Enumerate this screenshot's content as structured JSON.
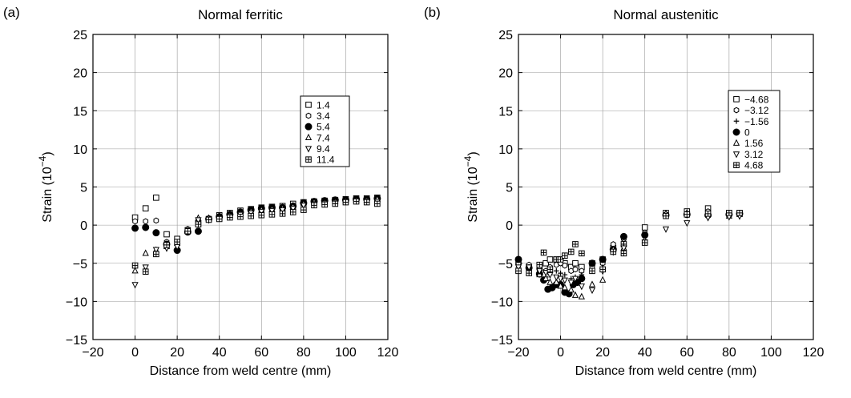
{
  "chart_data": [
    {
      "type": "scatter",
      "panel_label": "(a)",
      "title": "Normal ferritic",
      "xlabel": "Distance from weld centre (mm)",
      "ylabel": "Strain (10",
      "ylabel_exp": "−4",
      "ylabel_close": ")",
      "xlim": [
        -20,
        120
      ],
      "ylim": [
        -15,
        25
      ],
      "xticks": [
        "−20",
        "0",
        "20",
        "40",
        "60",
        "80",
        "100",
        "120"
      ],
      "yticks": [
        "25",
        "20",
        "15",
        "10",
        "5",
        "0",
        "−5",
        "−10",
        "−15"
      ],
      "grid": true,
      "legend_position": "upper-right",
      "series": [
        {
          "name": "1.4",
          "marker": "square",
          "x": [
            0,
            5,
            10,
            15,
            20,
            25,
            30,
            35,
            40,
            45,
            50,
            55,
            60,
            65,
            70,
            75,
            80,
            85,
            90,
            95,
            100,
            105,
            110,
            115
          ],
          "y": [
            1.0,
            2.2,
            3.6,
            -1.2,
            -1.8,
            -0.7,
            0.2,
            0.8,
            1.3,
            1.6,
            1.9,
            2.1,
            2.3,
            2.4,
            2.5,
            2.8,
            3.0,
            3.1,
            3.2,
            3.3,
            3.4,
            3.5,
            3.5,
            3.6
          ]
        },
        {
          "name": "3.4",
          "marker": "hexagon",
          "x": [
            0,
            5,
            10,
            15,
            20,
            25,
            30,
            35,
            40,
            45,
            50,
            55,
            60,
            65,
            70,
            75,
            80,
            85,
            90,
            95,
            100,
            105,
            110,
            115
          ],
          "y": [
            0.5,
            0.5,
            0.6,
            -2.2,
            -2.5,
            -0.5,
            0.4,
            0.9,
            1.2,
            1.5,
            1.8,
            2.0,
            2.2,
            2.3,
            2.4,
            2.6,
            2.9,
            3.0,
            3.1,
            3.2,
            3.3,
            3.4,
            3.4,
            3.5
          ]
        },
        {
          "name": "5.4",
          "marker": "filled-circle",
          "x": [
            0,
            5,
            10,
            15,
            20,
            25,
            30,
            35,
            40,
            45,
            50,
            55,
            60,
            65,
            70,
            75,
            80,
            85,
            90,
            95,
            100,
            105,
            110,
            115
          ],
          "y": [
            -0.4,
            -0.3,
            -1.0,
            -2.5,
            -3.3,
            -0.9,
            -0.8,
            0.8,
            1.1,
            1.4,
            1.7,
            2.0,
            2.2,
            2.3,
            2.3,
            2.5,
            2.9,
            3.1,
            3.2,
            3.3,
            3.3,
            3.4,
            3.4,
            3.5
          ]
        },
        {
          "name": "7.4",
          "marker": "triangle-up",
          "x": [
            0,
            5,
            10,
            15,
            20,
            25,
            30,
            35,
            40,
            45,
            50,
            55,
            60,
            65,
            70,
            75,
            80,
            85,
            90,
            95,
            100,
            105,
            110,
            115
          ],
          "y": [
            -6.0,
            -3.7,
            -3.3,
            -2.8,
            -2.4,
            -0.8,
            0.9,
            0.9,
            1.0,
            1.3,
            1.5,
            1.8,
            2.0,
            2.1,
            2.2,
            2.4,
            2.8,
            3.0,
            3.0,
            3.1,
            3.2,
            3.3,
            3.3,
            3.4
          ]
        },
        {
          "name": "9.4",
          "marker": "triangle-down",
          "x": [
            0,
            5,
            10,
            15,
            20,
            25,
            30,
            35,
            40,
            45,
            50,
            55,
            60,
            65,
            70,
            75,
            80,
            85,
            90,
            95,
            100,
            105,
            110,
            115
          ],
          "y": [
            -7.8,
            -5.5,
            -3.2,
            -3.0,
            -2.8,
            -0.6,
            0.7,
            0.7,
            0.9,
            1.2,
            1.4,
            1.6,
            1.8,
            1.9,
            2.0,
            2.2,
            2.6,
            2.8,
            2.9,
            3.0,
            3.1,
            3.2,
            3.2,
            3.1
          ]
        },
        {
          "name": "11.4",
          "marker": "grid-square",
          "x": [
            0,
            5,
            10,
            15,
            20,
            25,
            30,
            35,
            40,
            45,
            50,
            55,
            60,
            65,
            70,
            75,
            80,
            85,
            90,
            95,
            100,
            105,
            110,
            115
          ],
          "y": [
            -5.3,
            -6.1,
            -3.8,
            -2.6,
            -2.2,
            -0.8,
            0.1,
            0.7,
            0.8,
            1.0,
            1.1,
            1.2,
            1.3,
            1.4,
            1.5,
            1.7,
            2.0,
            2.6,
            2.7,
            2.8,
            3.0,
            3.1,
            3.0,
            2.8
          ]
        }
      ]
    },
    {
      "type": "scatter",
      "panel_label": "(b)",
      "title": "Normal austenitic",
      "xlabel": "Distance from weld centre (mm)",
      "ylabel": "Strain (10",
      "ylabel_exp": "−4",
      "ylabel_close": ")",
      "xlim": [
        -20,
        120
      ],
      "ylim": [
        -15,
        25
      ],
      "xticks": [
        "−20",
        "0",
        "20",
        "40",
        "60",
        "80",
        "100",
        "120"
      ],
      "yticks": [
        "25",
        "20",
        "15",
        "10",
        "5",
        "0",
        "−5",
        "−10",
        "−15"
      ],
      "grid": true,
      "legend_position": "upper-right",
      "series": [
        {
          "name": "−4.68",
          "marker": "square",
          "x": [
            -20,
            -15,
            -10,
            -7,
            -5,
            -2,
            0,
            2,
            5,
            7,
            10,
            15,
            20,
            25,
            30,
            40,
            50,
            60,
            70,
            80,
            85
          ],
          "y": [
            -4.8,
            -5.5,
            -5.5,
            -5.0,
            -4.5,
            -4.5,
            -4.5,
            -5.0,
            -5.5,
            -5.0,
            -5.5,
            -5.0,
            -4.5,
            -3.0,
            -2.5,
            -0.3,
            1.6,
            1.8,
            2.2,
            1.6,
            1.6
          ]
        },
        {
          "name": "−3.12",
          "marker": "hexagon",
          "x": [
            -20,
            -15,
            -10,
            -7,
            -5,
            -2,
            0,
            2,
            5,
            7,
            10,
            15,
            20,
            25,
            30,
            40,
            50,
            60,
            70,
            80,
            85
          ],
          "y": [
            -5.0,
            -5.2,
            -5.8,
            -6.0,
            -5.5,
            -5.2,
            -5.0,
            -5.3,
            -6.0,
            -5.8,
            -6.0,
            -5.5,
            -5.0,
            -2.5,
            -1.8,
            -1.0,
            1.4,
            1.5,
            1.8,
            1.5,
            1.6
          ]
        },
        {
          "name": "−1.56",
          "marker": "plus",
          "x": [
            -20,
            -15,
            -10,
            -7,
            -5,
            -2,
            0,
            2,
            5,
            7,
            10,
            15,
            20,
            25,
            30,
            40,
            50,
            60,
            70,
            80,
            85
          ],
          "y": [
            -5.5,
            -6.0,
            -6.5,
            -6.8,
            -6.5,
            -6.0,
            -6.3,
            -6.5,
            -7.0,
            -6.8,
            -6.5,
            -6.0,
            -5.5,
            -3.5,
            -2.5,
            -1.5,
            1.2,
            1.3,
            1.5,
            1.3,
            1.5
          ]
        },
        {
          "name": "0",
          "marker": "filled-circle",
          "x": [
            -20,
            -15,
            -10,
            -8,
            -6,
            -4,
            -2,
            0,
            2,
            4,
            6,
            8,
            10,
            15,
            20,
            25,
            30,
            40,
            50,
            60,
            70,
            80,
            85
          ],
          "y": [
            -4.5,
            -5.6,
            -6.4,
            -7.2,
            -8.4,
            -8.2,
            -7.8,
            -7.8,
            -8.8,
            -9.0,
            -7.8,
            -7.5,
            -7.0,
            -5.0,
            -4.5,
            -3.2,
            -1.5,
            -1.3,
            1.3,
            1.4,
            1.3,
            1.4,
            1.5
          ]
        },
        {
          "name": "1.56",
          "marker": "triangle-up",
          "x": [
            -20,
            -15,
            -10,
            -7,
            -5,
            -2,
            0,
            2,
            5,
            7,
            10,
            15,
            20,
            25,
            30,
            40,
            50,
            60,
            70,
            80,
            85
          ],
          "y": [
            -5.8,
            -6.2,
            -6.5,
            -7.0,
            -7.5,
            -7.5,
            -8.0,
            -8.2,
            -8.5,
            -9.2,
            -9.4,
            -7.8,
            -7.2,
            -3.2,
            -3.0,
            -2.0,
            1.5,
            1.6,
            1.4,
            1.2,
            1.4
          ]
        },
        {
          "name": "3.12",
          "marker": "triangle-down",
          "x": [
            -20,
            -15,
            -10,
            -7,
            -5,
            -2,
            0,
            2,
            5,
            7,
            10,
            15,
            20,
            25,
            30,
            40,
            50,
            60,
            70,
            80,
            85
          ],
          "y": [
            -5.5,
            -5.5,
            -6.0,
            -6.2,
            -6.5,
            -6.8,
            -7.0,
            -7.2,
            -7.5,
            -7.0,
            -8.0,
            -8.5,
            -6.0,
            -3.5,
            -3.0,
            -2.2,
            -0.5,
            0.3,
            1.0,
            1.1,
            1.2
          ]
        },
        {
          "name": "4.68",
          "marker": "grid-square",
          "x": [
            -20,
            -15,
            -10,
            -8,
            -5,
            -2,
            0,
            2,
            5,
            7,
            10,
            15,
            20,
            25,
            30,
            40,
            50,
            60,
            70,
            80,
            85
          ],
          "y": [
            -6.0,
            -6.3,
            -5.2,
            -3.6,
            -5.8,
            -4.5,
            -4.5,
            -4.0,
            -3.5,
            -2.5,
            -3.7,
            -6.0,
            -5.8,
            -3.5,
            -3.7,
            -2.3,
            1.2,
            1.4,
            1.5,
            1.6,
            1.6
          ]
        }
      ]
    }
  ]
}
